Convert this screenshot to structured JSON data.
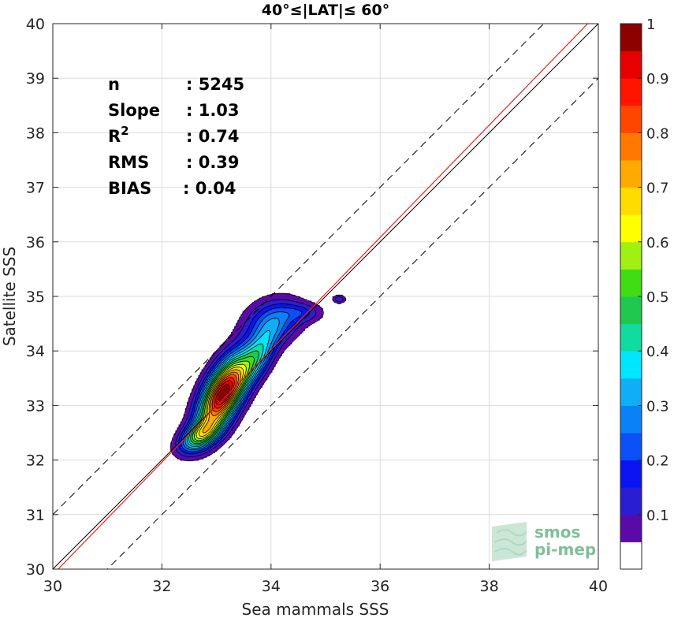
{
  "chart_data": {
    "type": "contour",
    "title": "40°≤|LAT|≤ 60°",
    "xlabel": "Sea mammals SSS",
    "ylabel": "Satellite SSS",
    "xlim": [
      30,
      40
    ],
    "ylim": [
      30,
      40
    ],
    "xticks": [
      "30",
      "32",
      "34",
      "36",
      "38",
      "40"
    ],
    "yticks": [
      "30",
      "31",
      "32",
      "33",
      "34",
      "35",
      "36",
      "37",
      "38",
      "39",
      "40"
    ],
    "grid": true,
    "stats": [
      {
        "label": "n",
        "value": ": 5245"
      },
      {
        "label": "Slope",
        "value": ": 1.03"
      },
      {
        "label": "R",
        "sup": "2",
        "value": ": 0.74"
      },
      {
        "label": "RMS",
        "value": ": 0.39"
      },
      {
        "label": "BIAS",
        "value": ": 0.04"
      }
    ],
    "lines": {
      "identity": {
        "color": "#000000",
        "points": [
          [
            30,
            30
          ],
          [
            40,
            40
          ]
        ]
      },
      "regression": {
        "color": "#e8231f",
        "slope": 1.03,
        "intercept": -1.0
      },
      "envelope_offset": 1.0
    },
    "density": {
      "levels": [
        0.05,
        0.1,
        0.15,
        0.2,
        0.25,
        0.3,
        0.35,
        0.4,
        0.45,
        0.5,
        0.55,
        0.6,
        0.65,
        0.7,
        0.75,
        0.8,
        0.85,
        0.9,
        0.95
      ],
      "blobs": [
        {
          "cx": 33.12,
          "cy": 33.22,
          "sx": 0.3,
          "sy": 0.46,
          "rho": 0.6,
          "amp": 1.0
        },
        {
          "cx": 32.7,
          "cy": 32.45,
          "sx": 0.25,
          "sy": 0.2,
          "rho": 0.5,
          "amp": 0.45
        },
        {
          "cx": 33.75,
          "cy": 33.9,
          "sx": 0.25,
          "sy": 0.35,
          "rho": 0.6,
          "amp": 0.35
        },
        {
          "cx": 34.05,
          "cy": 34.55,
          "sx": 0.35,
          "sy": 0.28,
          "rho": 0.2,
          "amp": 0.25
        },
        {
          "cx": 34.6,
          "cy": 34.7,
          "sx": 0.25,
          "sy": 0.12,
          "rho": 0.0,
          "amp": 0.12
        },
        {
          "cx": 35.25,
          "cy": 34.95,
          "sx": 0.08,
          "sy": 0.05,
          "rho": 0.0,
          "amp": 0.15
        }
      ]
    },
    "colorbar": {
      "ticks": [
        "0.1",
        "0.2",
        "0.3",
        "0.4",
        "0.5",
        "0.6",
        "0.7",
        "0.8",
        "0.9",
        "1"
      ],
      "tick_values": [
        0.1,
        0.2,
        0.3,
        0.4,
        0.5,
        0.6,
        0.7,
        0.8,
        0.9,
        1.0
      ],
      "range": [
        0,
        1
      ],
      "colors": [
        "#ffffff",
        "#5a0aa8",
        "#2a1ed2",
        "#0a14f0",
        "#0a50f5",
        "#0a82f5",
        "#10aef5",
        "#00e6ff",
        "#10dca0",
        "#20c850",
        "#40dc14",
        "#a0f014",
        "#ffff00",
        "#ffdc00",
        "#ffaa00",
        "#ff7800",
        "#ff4600",
        "#ff1400",
        "#e60000",
        "#8c0000"
      ]
    }
  },
  "logo": {
    "line1": "smos",
    "line2": "pi-mep"
  }
}
